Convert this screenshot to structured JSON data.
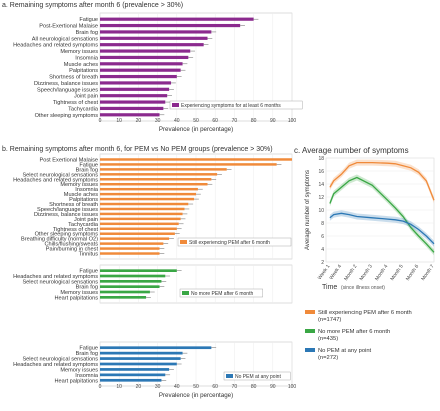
{
  "panels": {
    "a_title": "a. Remaining symptoms after month 6 (prevalence > 30%)",
    "b_title": "b. Remaining symptoms after month 6, for PEM vs No PEM groups (prevalence > 30%)",
    "c_title": "c. Average number of symptoms"
  },
  "chart_data": [
    {
      "id": "a",
      "type": "bar",
      "orientation": "horizontal",
      "xlabel": "Prevalence (in percentage)",
      "xlim": [
        0,
        100
      ],
      "ticks": [
        0,
        10,
        20,
        30,
        40,
        50,
        60,
        70,
        80,
        90,
        100
      ],
      "color": "#8b2a8e",
      "legend": "Experiencing symptoms for at least 6 months",
      "categories": [
        "Fatigue",
        "Post-Exertional Malaise",
        "Brain fog",
        "All neurological sensations",
        "Headaches and related symptoms",
        "Memory issues",
        "Insomnia",
        "Muscle aches",
        "Palpitations",
        "Shortness of breath",
        "Dizziness, balance issues",
        "Speech/language issues",
        "Joint pain",
        "Tightness of chest",
        "Tachycardia",
        "Other sleeping symptoms"
      ],
      "values": [
        80,
        73,
        58,
        56,
        54,
        47,
        46,
        43,
        42,
        40,
        37,
        36,
        35,
        34,
        33,
        31
      ]
    },
    {
      "id": "b1",
      "type": "bar",
      "orientation": "horizontal",
      "xlim": [
        0,
        100
      ],
      "color": "#f08a3a",
      "legend": "Still experiencing PEM after 6 month",
      "categories": [
        "Post Exertional Malaise",
        "Fatigue",
        "Brain fog",
        "Select neurological sensations",
        "Headaches and related symptoms",
        "Memory issues",
        "Insomnia",
        "Muscle aches",
        "Palpitations",
        "Shortness of breath",
        "Speech/language issues",
        "Dizziness, balance issues",
        "Joint pain",
        "Tachycardia",
        "Tightness of chest",
        "Other sleeping symptoms",
        "Breathing difficulty (normal O2)",
        "Chills/flushing/sweats",
        "Pain/burning in chest",
        "Tinnitus"
      ],
      "values": [
        100,
        92,
        66,
        61,
        58,
        56,
        51,
        50,
        49,
        46,
        44,
        43,
        42,
        41,
        40,
        39,
        36,
        33,
        31,
        31
      ]
    },
    {
      "id": "b2",
      "type": "bar",
      "orientation": "horizontal",
      "xlim": [
        0,
        100
      ],
      "color": "#3aa745",
      "legend": "No more PEM after 6 month",
      "categories": [
        "Fatigue",
        "Headaches and related symptoms",
        "Select neurological sensations",
        "Brain fog",
        "Memory issues",
        "Heart palpitations"
      ],
      "values": [
        40,
        34,
        32,
        31,
        26,
        24
      ]
    },
    {
      "id": "b3",
      "type": "bar",
      "orientation": "horizontal",
      "xlabel": "Prevalence (in percentage)",
      "xlim": [
        0,
        100
      ],
      "ticks": [
        0,
        10,
        20,
        30,
        40,
        50,
        60,
        70,
        80,
        90,
        100
      ],
      "color": "#2c78b5",
      "legend": "No PEM at any point",
      "categories": [
        "Fatigue",
        "Brain fog",
        "Select neurological sensations",
        "Headaches and related symptoms",
        "Memory issues",
        "Insomnia",
        "Heart palpitations"
      ],
      "values": [
        58,
        43,
        42,
        40,
        36,
        34,
        32
      ]
    },
    {
      "id": "c",
      "type": "line",
      "title": "Average number of symptoms",
      "xlabel": "Time",
      "xlabel_note": "(since illness onset)",
      "ylabel": "Average number of symptoms",
      "ylim": [
        2,
        18
      ],
      "yticks": [
        2,
        4,
        6,
        8,
        10,
        12,
        14,
        16,
        18
      ],
      "xticks": [
        "Week 1",
        "Week 4",
        "Month 2",
        "Month 3",
        "Month 4",
        "Month 5",
        "Month 6",
        "Month 7"
      ],
      "xtick_pos": [
        0.25,
        1,
        2,
        3,
        4,
        5,
        6,
        7
      ],
      "xlim": [
        0,
        7
      ],
      "x": [
        0.25,
        0.5,
        1,
        1.5,
        2,
        3,
        4,
        4.5,
        5,
        5.5,
        6,
        6.5,
        7
      ],
      "series": [
        {
          "name": "Still experiencing PEM after 6 month",
          "n": "(n=1747)",
          "color": "#f08a3a",
          "values": [
            13.5,
            14.5,
            15.5,
            16.8,
            17.3,
            17.3,
            17.2,
            17.1,
            16.8,
            16.5,
            15.8,
            14.5,
            11.5
          ]
        },
        {
          "name": "No more PEM after 6 month",
          "n": "(n=435)",
          "color": "#3aa745",
          "values": [
            11.0,
            12.5,
            13.5,
            14.5,
            15.0,
            13.8,
            11.5,
            10.3,
            9.0,
            7.3,
            6.0,
            4.8,
            3.5
          ]
        },
        {
          "name": "No PEM at any point",
          "n": "(n=272)",
          "color": "#2c78b5",
          "values": [
            8.8,
            9.3,
            9.5,
            9.3,
            9.0,
            8.8,
            8.6,
            8.5,
            8.3,
            7.8,
            7.0,
            6.0,
            4.8
          ]
        }
      ]
    }
  ]
}
